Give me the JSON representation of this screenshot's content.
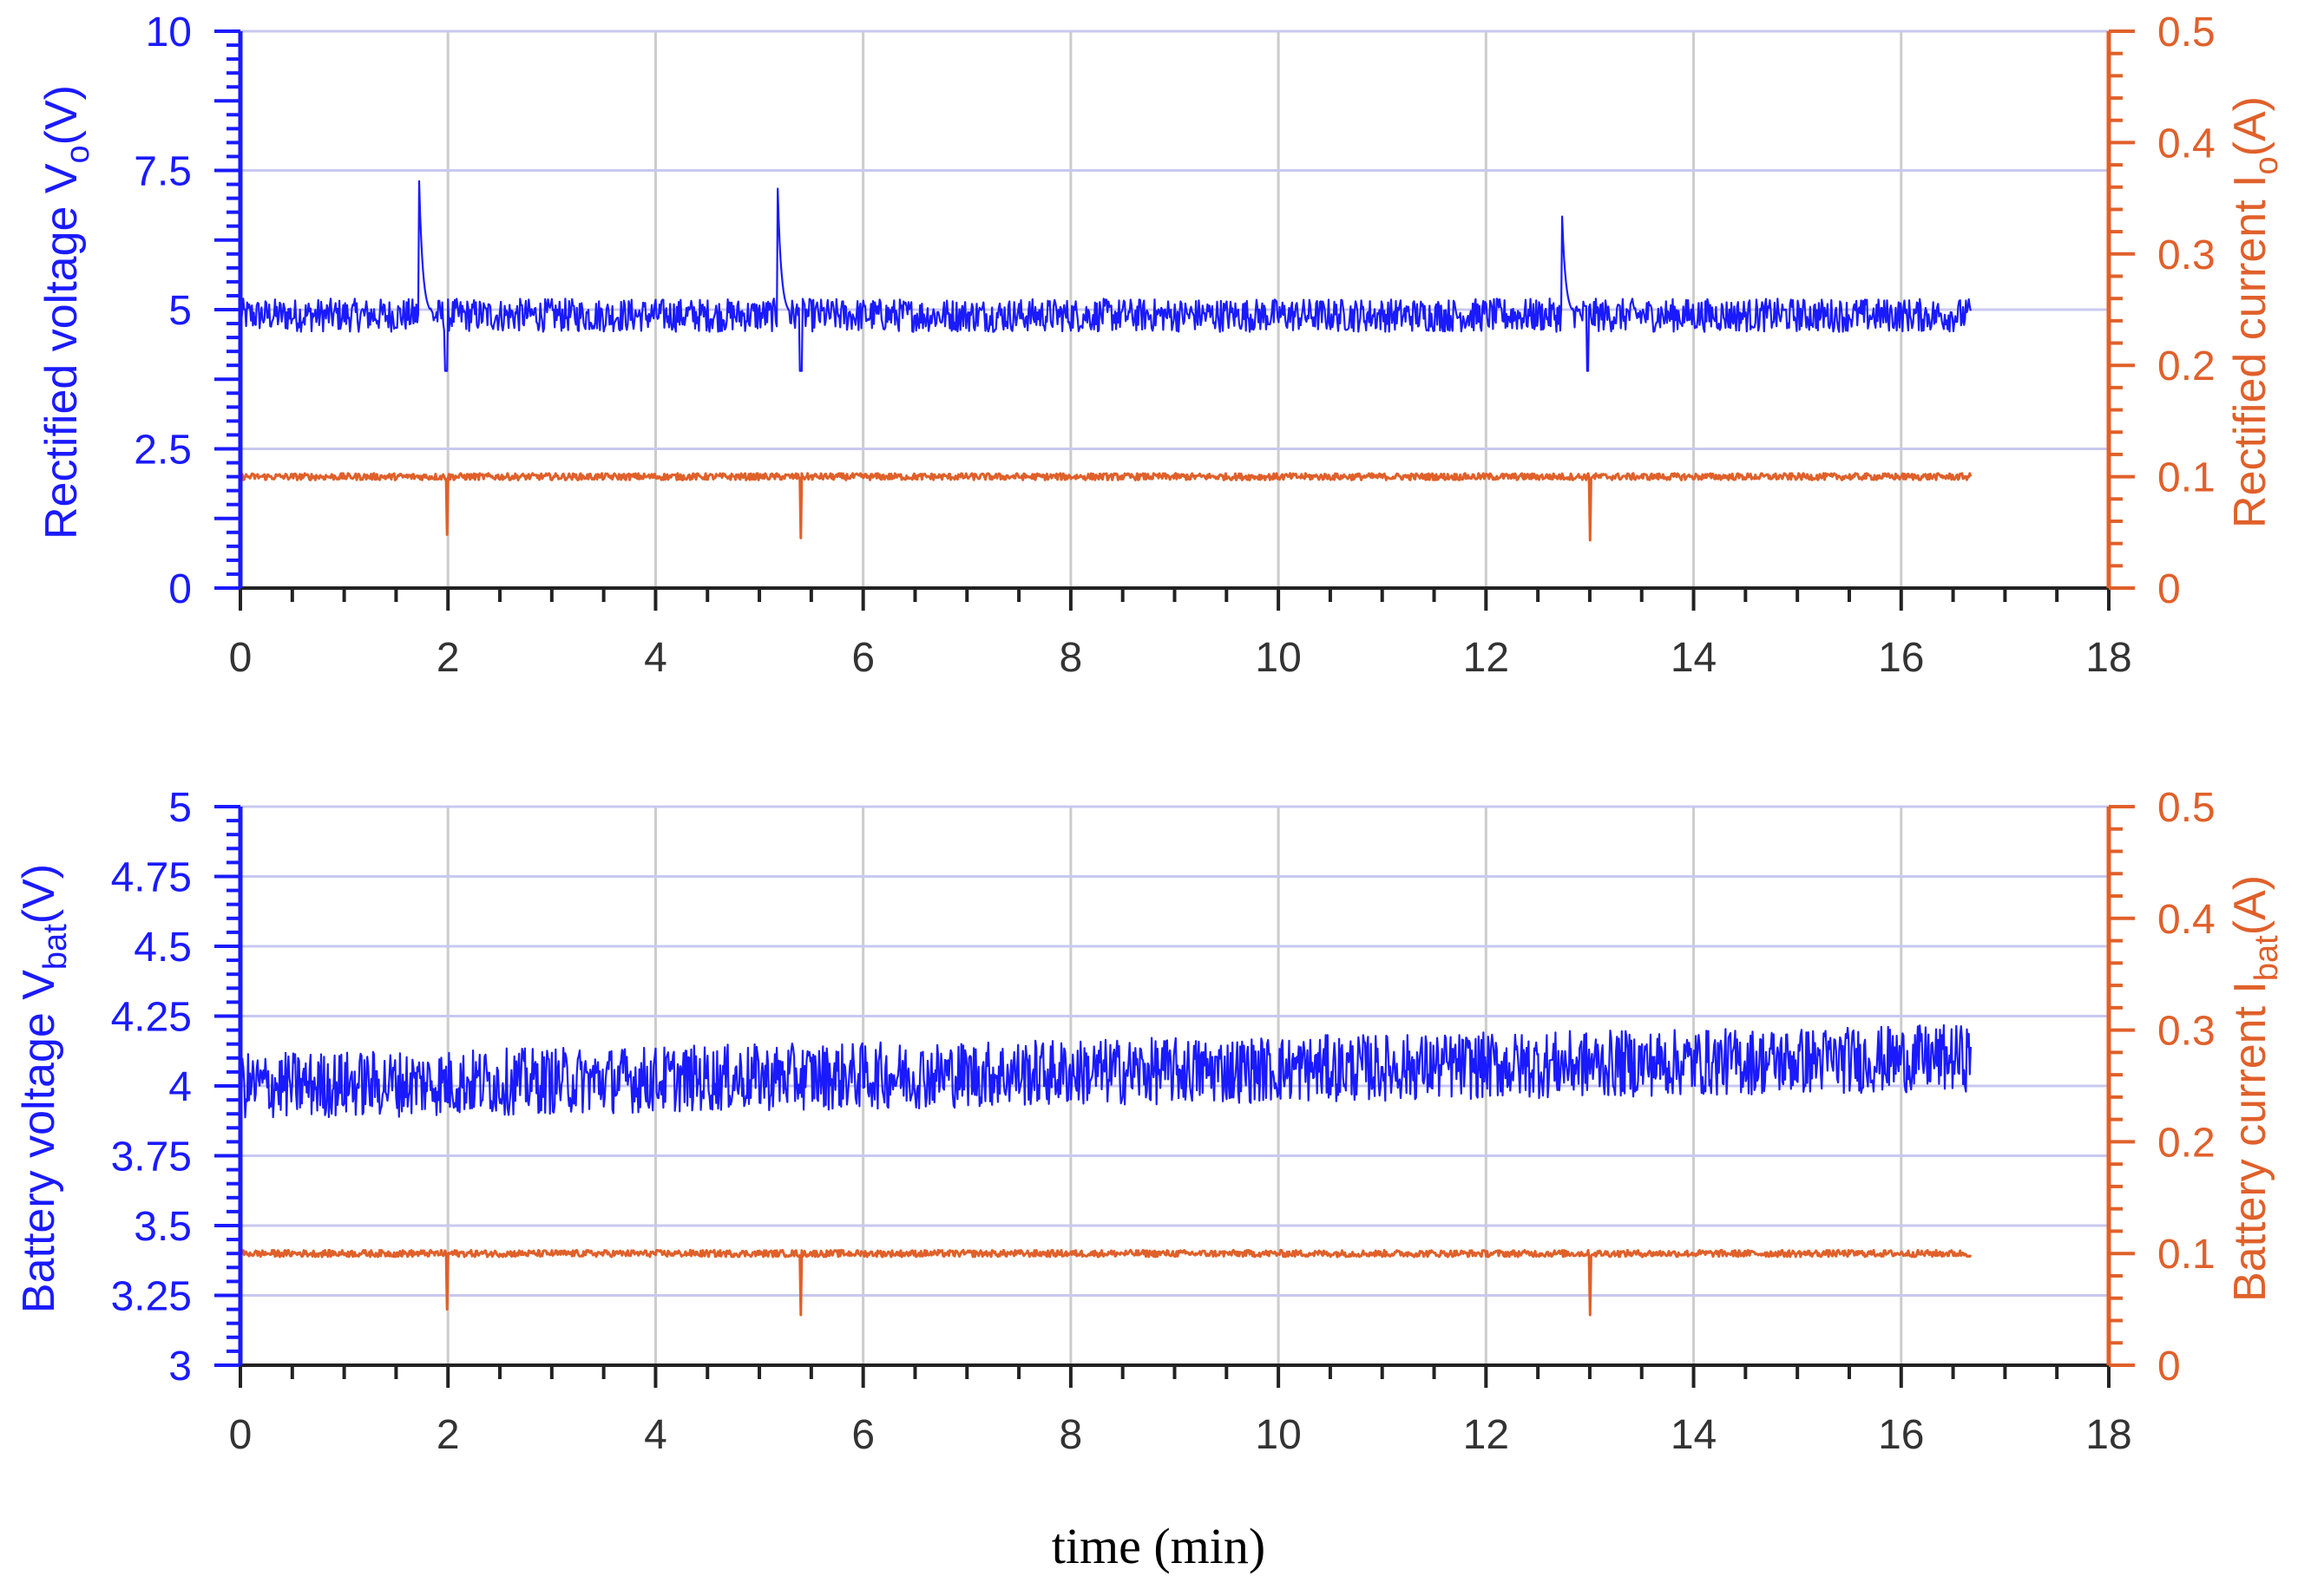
{
  "xlabel": "time (min)",
  "colors": {
    "left_axis": "#1a1aff",
    "right_axis": "#e0602a",
    "grid": "#c8c8f0",
    "grid_vertical": "#cccccc",
    "frame": "#222222"
  },
  "chart_data": [
    {
      "type": "line",
      "title": "",
      "xlabel": "time (min)",
      "ylabel": "Rectified voltage  V",
      "ylabel_sub": "o",
      "ylabel_unit": "(V)",
      "y2label": "Rectified current   I",
      "y2label_sub": "o",
      "y2label_unit": "(A)",
      "xlim": [
        0,
        18
      ],
      "ylim": [
        0,
        10
      ],
      "y2lim": [
        0,
        0.5
      ],
      "xticks": [
        0,
        2,
        4,
        6,
        8,
        10,
        12,
        14,
        16,
        18
      ],
      "yticks": [
        "0",
        "2.5",
        "5",
        "7.5",
        "10"
      ],
      "ytick_values": [
        0,
        2.5,
        5,
        7.5,
        10
      ],
      "y2ticks": [
        "0",
        "0.1",
        "0.2",
        "0.3",
        "0.4",
        "0.5"
      ],
      "y2tick_values": [
        0,
        0.1,
        0.2,
        0.3,
        0.4,
        0.5
      ],
      "grid": true,
      "series": [
        {
          "axis": "left",
          "color": "#1a1aff",
          "baseline": 4.9,
          "noise_amplitude": 0.3,
          "x_range": [
            0,
            16.67
          ],
          "spikes": [
            {
              "x": 1.72,
              "peak": 7.5,
              "dip_x": 1.98,
              "dip": 3.9
            },
            {
              "x": 5.17,
              "peak": 7.7,
              "dip_x": 5.4,
              "dip": 3.9
            },
            {
              "x": 12.73,
              "peak": 6.9,
              "dip_x": 12.98,
              "dip": 3.9
            }
          ]
        },
        {
          "axis": "right",
          "color": "#e0602a",
          "baseline": 0.1,
          "noise_amplitude": 0.003,
          "x_range": [
            0,
            16.67
          ],
          "dips": [
            {
              "x": 1.99,
              "value": 0.048
            },
            {
              "x": 5.4,
              "value": 0.045
            },
            {
              "x": 13.0,
              "value": 0.043
            }
          ]
        }
      ]
    },
    {
      "type": "line",
      "title": "",
      "xlabel": "time (min)",
      "ylabel": "Battery voltage  V",
      "ylabel_sub": "bat",
      "ylabel_unit": "(V)",
      "y2label": "Battery current   I",
      "y2label_sub": "bat",
      "y2label_unit": "(A)",
      "xlim": [
        0,
        18
      ],
      "ylim": [
        3,
        5
      ],
      "y2lim": [
        0,
        0.5
      ],
      "xticks": [
        0,
        2,
        4,
        6,
        8,
        10,
        12,
        14,
        16,
        18
      ],
      "yticks": [
        "3",
        "3.25",
        "3.5",
        "3.75",
        "4",
        "4.25",
        "4.5",
        "4.75",
        "5"
      ],
      "ytick_values": [
        3,
        3.25,
        3.5,
        3.75,
        4,
        4.25,
        4.5,
        4.75,
        5
      ],
      "y2ticks": [
        "0",
        "0.1",
        "0.2",
        "0.3",
        "0.4",
        "0.5"
      ],
      "y2tick_values": [
        0,
        0.1,
        0.2,
        0.3,
        0.4,
        0.5
      ],
      "grid": true,
      "series": [
        {
          "axis": "left",
          "color": "#1a1aff",
          "baseline_start": 4.0,
          "baseline_end": 4.1,
          "noise_amplitude": 0.12,
          "x_range": [
            0,
            16.67
          ]
        },
        {
          "axis": "right",
          "color": "#e0602a",
          "baseline": 0.1,
          "noise_amplitude": 0.003,
          "x_range": [
            0,
            16.67
          ],
          "dips": [
            {
              "x": 1.99,
              "value": 0.05
            },
            {
              "x": 5.4,
              "value": 0.045
            },
            {
              "x": 13.0,
              "value": 0.045
            }
          ]
        }
      ]
    }
  ]
}
